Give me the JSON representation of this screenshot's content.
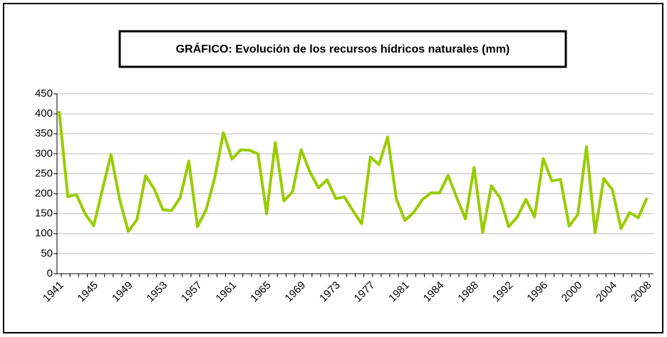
{
  "chart_data": {
    "type": "line",
    "title": "GRÁFICO: Evolución de los recursos hídricos naturales (mm)",
    "categories": [
      "1941",
      null,
      null,
      null,
      "1945",
      null,
      null,
      null,
      "1949",
      null,
      null,
      null,
      "1953",
      null,
      null,
      null,
      "1957",
      null,
      null,
      null,
      "1961",
      null,
      null,
      null,
      "1965",
      null,
      null,
      null,
      "1969",
      null,
      null,
      null,
      "1973",
      null,
      null,
      null,
      "1977",
      null,
      null,
      null,
      "1981",
      null,
      null,
      null,
      "1984",
      null,
      null,
      null,
      "1988",
      null,
      null,
      null,
      "1992",
      null,
      null,
      null,
      "1996",
      null,
      null,
      null,
      "2000",
      null,
      null,
      null,
      "2004",
      null,
      null,
      null,
      "2008"
    ],
    "values": [
      407,
      193,
      198,
      150,
      120,
      210,
      298,
      185,
      106,
      135,
      245,
      212,
      160,
      158,
      190,
      282,
      118,
      160,
      240,
      353,
      287,
      310,
      309,
      300,
      150,
      328,
      182,
      205,
      310,
      255,
      215,
      235,
      188,
      192,
      157,
      125,
      292,
      273,
      342,
      188,
      133,
      153,
      185,
      202,
      202,
      246,
      190,
      137,
      266,
      103,
      220,
      190,
      118,
      142,
      186,
      142,
      288,
      232,
      236,
      119,
      148,
      318,
      103,
      238,
      210,
      113,
      153,
      140,
      190
    ],
    "color": "#99cc00",
    "ylim": [
      0,
      450
    ],
    "yticks": [
      0,
      50,
      100,
      150,
      200,
      250,
      300,
      350,
      400,
      450
    ],
    "grid": true
  }
}
